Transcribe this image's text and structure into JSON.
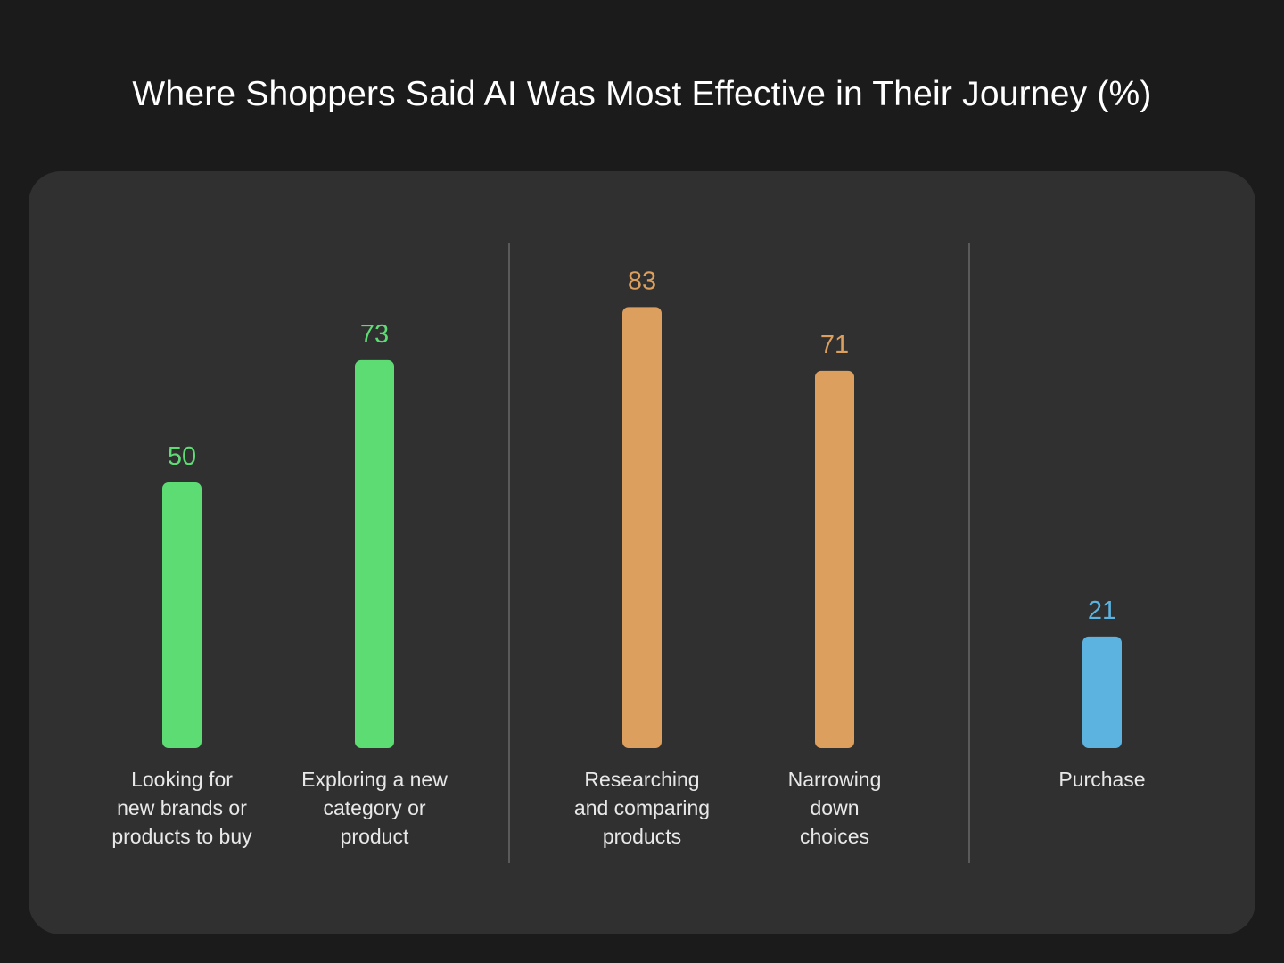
{
  "title": "Where Shoppers Said AI Was Most Effective in Their Journey (%)",
  "chart_data": {
    "type": "bar",
    "title": "Where Shoppers Said AI Was Most Effective in Their Journey (%)",
    "categories": [
      "Looking for new brands or products to buy",
      "Exploring a new category or product",
      "Researching and comparing products",
      "Narrowing down choices",
      "Purchase"
    ],
    "values": [
      50,
      73,
      83,
      71,
      21
    ],
    "value_labels": [
      "50",
      "73",
      "83",
      "71",
      "21"
    ],
    "label_lines": [
      [
        "Looking for",
        "new brands or",
        "products to buy"
      ],
      [
        "Exploring a new",
        "category or",
        "product"
      ],
      [
        "Researching",
        "and comparing",
        "products"
      ],
      [
        "Narrowing",
        "down",
        "choices"
      ],
      [
        "Purchase"
      ]
    ],
    "groups": [
      [
        0,
        1
      ],
      [
        2,
        3
      ],
      [
        4
      ]
    ],
    "colors": [
      "#5ddc74",
      "#5ddc74",
      "#dd9f5d",
      "#dd9f5d",
      "#5cb3e0"
    ],
    "ylim": [
      0,
      100
    ],
    "grid": false,
    "xlabel": "",
    "ylabel": ""
  }
}
